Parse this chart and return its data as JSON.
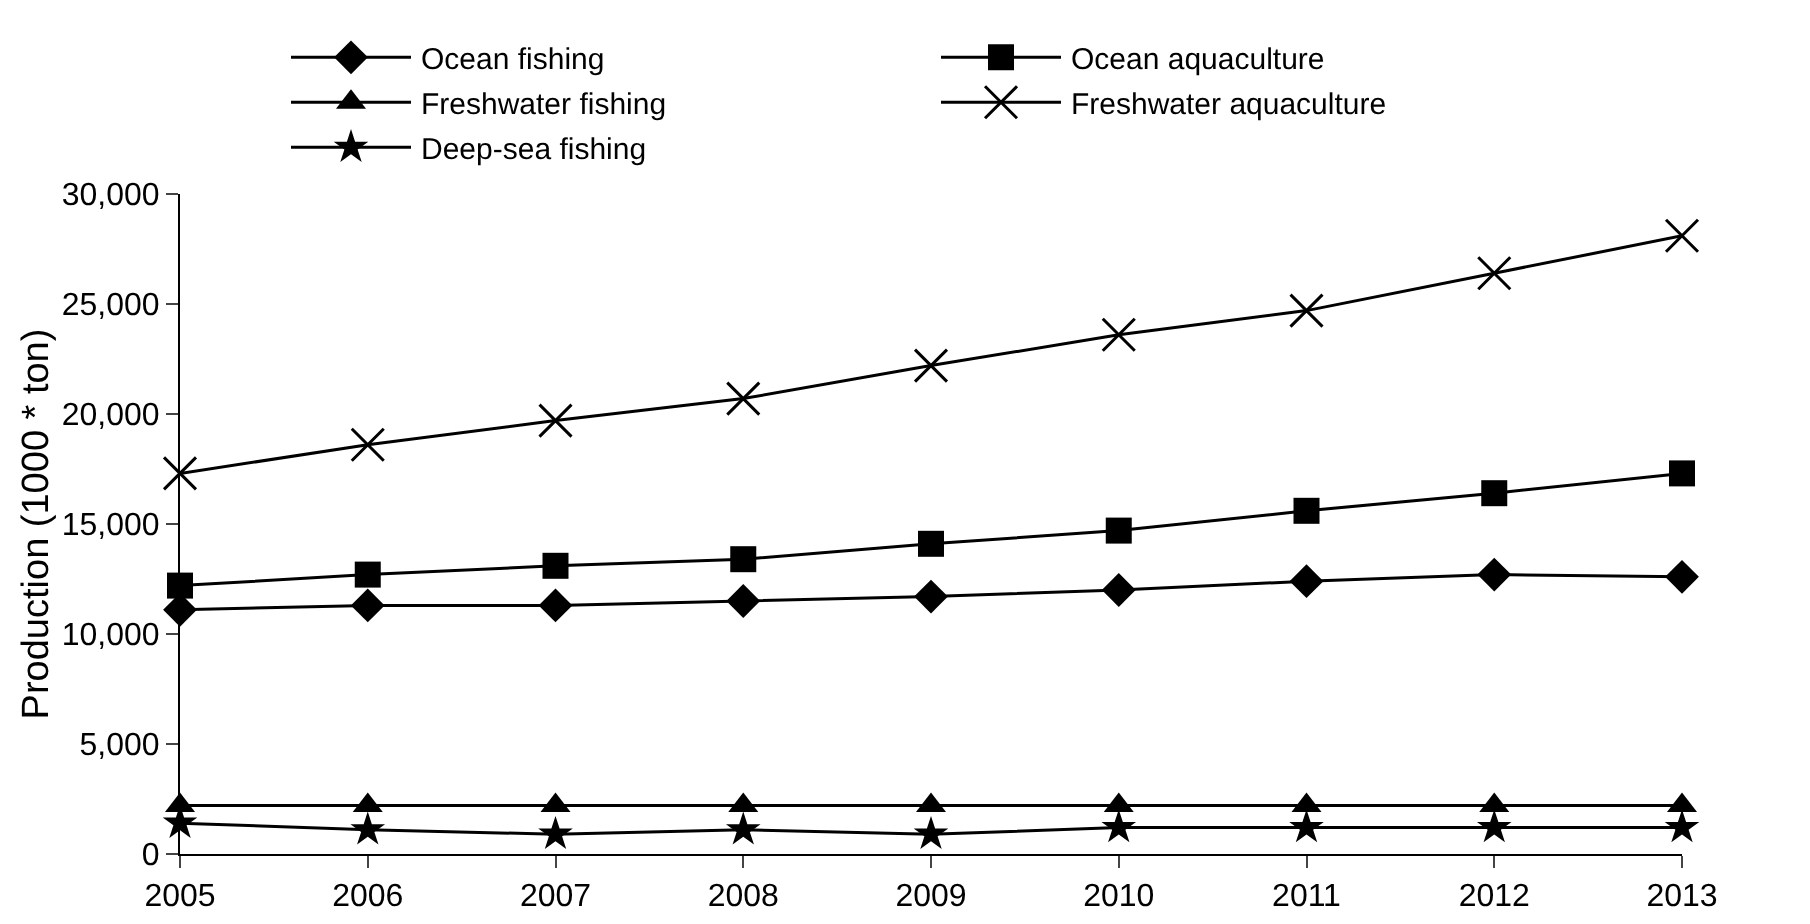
{
  "chart_data": {
    "type": "line",
    "ylabel": "Production (1000 * ton)",
    "categories": [
      "2005",
      "2006",
      "2007",
      "2008",
      "2009",
      "2010",
      "2011",
      "2012",
      "2013"
    ],
    "series": [
      {
        "name": "Ocean fishing",
        "color": "#000000",
        "marker": "diamond",
        "values": [
          11100,
          11300,
          11300,
          11500,
          11700,
          12000,
          12400,
          12700,
          12600
        ]
      },
      {
        "name": "Ocean aquaculture",
        "color": "#000000",
        "marker": "square",
        "values": [
          12200,
          12700,
          13100,
          13400,
          14100,
          14700,
          15600,
          16400,
          17300
        ]
      },
      {
        "name": "Freshwater fishing",
        "color": "#000000",
        "marker": "triangle",
        "values": [
          2200,
          2200,
          2200,
          2200,
          2200,
          2200,
          2200,
          2200,
          2200
        ]
      },
      {
        "name": "Freshwater aquaculture",
        "color": "#000000",
        "marker": "cross",
        "values": [
          17300,
          18600,
          19700,
          20700,
          22200,
          23600,
          24700,
          26400,
          28100
        ]
      },
      {
        "name": "Deep-sea fishing",
        "color": "#000000",
        "marker": "star",
        "values": [
          1400,
          1100,
          900,
          1100,
          900,
          1200,
          1200,
          1200,
          1200
        ]
      }
    ],
    "ylim": [
      0,
      30000
    ],
    "yticks": [
      {
        "value": 0,
        "label": "0"
      },
      {
        "value": 5000,
        "label": "5,000"
      },
      {
        "value": 10000,
        "label": "10,000"
      },
      {
        "value": 15000,
        "label": "15,000"
      },
      {
        "value": 20000,
        "label": "20,000"
      },
      {
        "value": 25000,
        "label": "25,000"
      },
      {
        "value": 30000,
        "label": "30,000"
      }
    ],
    "grid": false,
    "legend": "top",
    "line_style": "solid"
  }
}
